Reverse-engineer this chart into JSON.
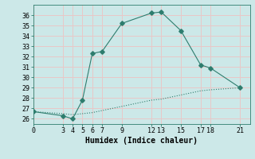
{
  "line1_x": [
    0,
    3,
    4,
    5,
    6,
    7,
    9,
    12,
    13,
    15,
    17,
    18,
    21
  ],
  "line1_y": [
    26.7,
    26.3,
    26.0,
    27.8,
    32.3,
    32.5,
    35.2,
    36.2,
    36.3,
    34.5,
    31.2,
    30.9,
    29.0
  ],
  "line2_x": [
    0,
    3,
    4,
    5,
    6,
    7,
    9,
    12,
    13,
    15,
    17,
    18,
    21
  ],
  "line2_y": [
    26.7,
    26.5,
    26.4,
    26.5,
    26.6,
    26.8,
    27.2,
    27.8,
    27.9,
    28.3,
    28.7,
    28.8,
    29.0
  ],
  "line_color": "#2e7d6e",
  "bg_color": "#cce8e8",
  "grid_color": "#e8c8c8",
  "xlabel": "Humidex (Indice chaleur)",
  "xticks": [
    0,
    3,
    4,
    5,
    6,
    7,
    9,
    12,
    13,
    15,
    17,
    18,
    21
  ],
  "yticks": [
    26,
    27,
    28,
    29,
    30,
    31,
    32,
    33,
    34,
    35,
    36
  ],
  "ylim": [
    25.5,
    37.0
  ],
  "xlim": [
    0,
    22
  ]
}
